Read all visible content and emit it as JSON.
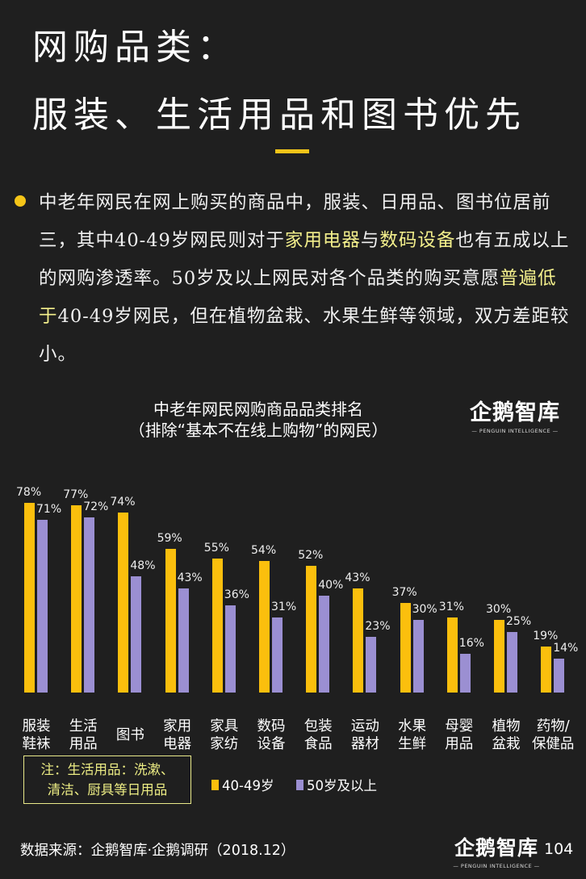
{
  "header": {
    "title_line1": "网购品类：",
    "title_line2": "服装、生活用品和图书优先",
    "accent_color": "#f0c419"
  },
  "summary": {
    "seg1": "中老年网民在网上购买的商品中，服装、日用品、图书位居前三，其中40-49岁网民则对于",
    "hl1": "家用电器",
    "seg2": "与",
    "hl2": "数码设备",
    "seg3": "也有五成以上的网购渗透率。50岁及以上网民对各个品类的购买意愿",
    "hl3": "普遍低于",
    "seg4": "40-49岁网民，但在植物盆栽、水果生鲜等领域，双方差距较小。"
  },
  "chart_header": {
    "title": "中老年网民网购商品品类排名",
    "subtitle": "（排除“基本不在线上购物”的网民）"
  },
  "logo": {
    "main": "企鹅智库",
    "sub": "— PENGUIN INTELLIGENCE —"
  },
  "chart_data": {
    "type": "bar",
    "title": "中老年网民网购商品品类排名",
    "subtitle": "（排除“基本不在线上购物”的网民）",
    "categories": [
      "服装鞋袜",
      "生活用品",
      "图书",
      "家用电器",
      "家具家纺",
      "数码设备",
      "包装食品",
      "运动器材",
      "水果生鲜",
      "母婴用品",
      "植物盆栽",
      "药物/保健品"
    ],
    "series": [
      {
        "name": "40-49岁",
        "color": "#fbbf0d",
        "values": [
          78,
          77,
          74,
          59,
          55,
          54,
          52,
          43,
          37,
          31,
          30,
          19
        ]
      },
      {
        "name": "50岁及以上",
        "color": "#9b8fd2",
        "values": [
          71,
          72,
          48,
          43,
          36,
          31,
          40,
          23,
          30,
          16,
          25,
          14
        ]
      }
    ],
    "value_format": "percent",
    "xlabel": "",
    "ylabel": "",
    "ylim": [
      0,
      100
    ],
    "grid": false,
    "legend_position": "bottom"
  },
  "categories_display": [
    [
      "服装",
      "鞋袜"
    ],
    [
      "生活",
      "用品"
    ],
    [
      "图书",
      ""
    ],
    [
      "家用",
      "电器"
    ],
    [
      "家具",
      "家纺"
    ],
    [
      "数码",
      "设备"
    ],
    [
      "包装",
      "食品"
    ],
    [
      "运动",
      "器材"
    ],
    [
      "水果",
      "生鲜"
    ],
    [
      "母婴",
      "用品"
    ],
    [
      "植物",
      "盆栽"
    ],
    [
      "药物/",
      "保健品"
    ]
  ],
  "note": {
    "line1": "注：生活用品：洗漱、",
    "line2": "清洁、厨具等日用品"
  },
  "legend": [
    {
      "label": "40-49岁",
      "color": "#fbbf0d"
    },
    {
      "label": "50岁及以上",
      "color": "#9b8fd2"
    }
  ],
  "footer": {
    "source": "数据来源：企鹅智库·企鹅调研（2018.12）",
    "page_number": "104"
  }
}
